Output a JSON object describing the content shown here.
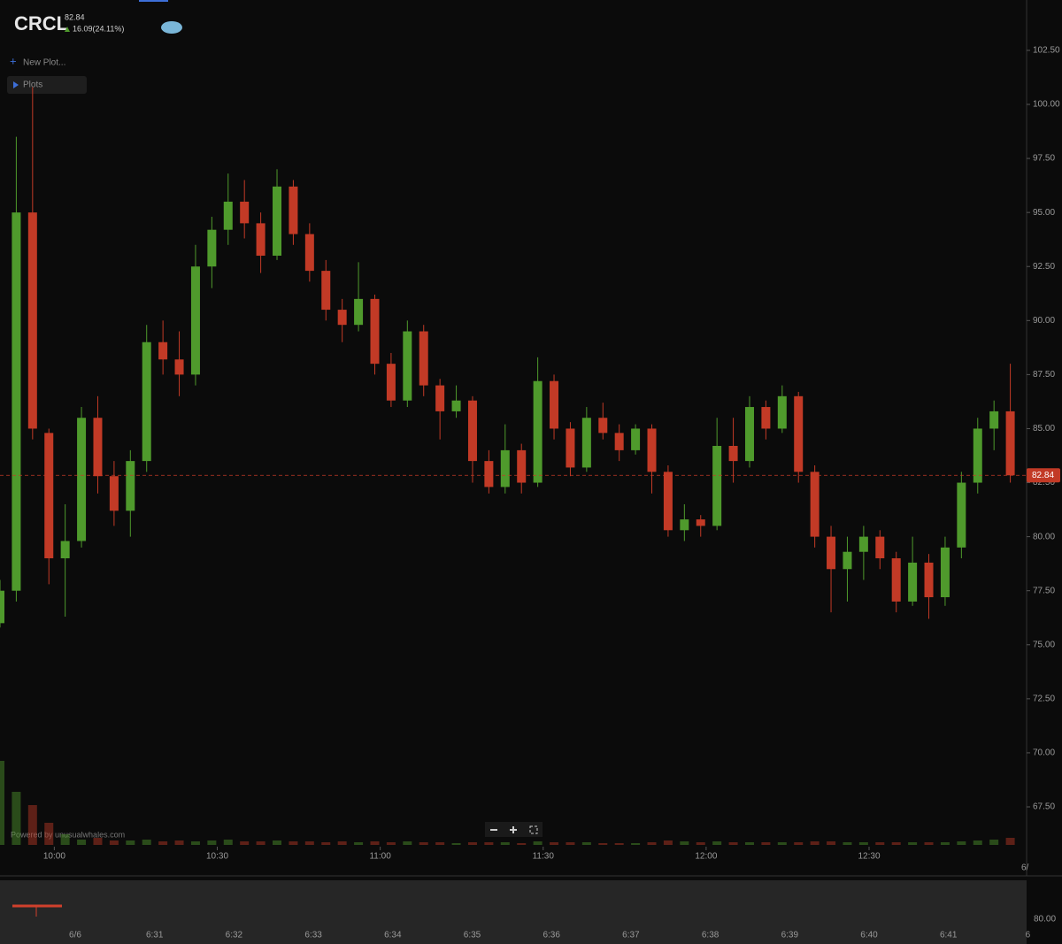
{
  "header": {
    "symbol": "CRCL",
    "price": "82.84",
    "change": "16.09(24.11%)",
    "new_plot": "New Plot...",
    "plots": "Plots",
    "powered_by": "Powered by unusualwhales.com"
  },
  "chart_data": {
    "type": "candlestick",
    "x": [
      "9:50",
      "9:53",
      "9:56",
      "9:59",
      "10:02",
      "10:05",
      "10:08",
      "10:11",
      "10:14",
      "10:17",
      "10:20",
      "10:23",
      "10:26",
      "10:29",
      "10:32",
      "10:35",
      "10:38",
      "10:41",
      "10:44",
      "10:47",
      "10:50",
      "10:53",
      "10:56",
      "10:59",
      "11:02",
      "11:05",
      "11:08",
      "11:11",
      "11:14",
      "11:17",
      "11:20",
      "11:23",
      "11:26",
      "11:29",
      "11:32",
      "11:35",
      "11:38",
      "11:41",
      "11:44",
      "11:47",
      "11:50",
      "11:53",
      "11:56",
      "11:59",
      "12:02",
      "12:05",
      "12:08",
      "12:11",
      "12:14",
      "12:17",
      "12:20",
      "12:23",
      "12:26",
      "12:29",
      "12:32",
      "12:35",
      "12:38",
      "12:41",
      "12:44",
      "12:47",
      "12:50",
      "12:53",
      "12:56"
    ],
    "ohlc": [
      [
        76.0,
        78.0,
        75.8,
        77.5
      ],
      [
        77.5,
        98.5,
        77.0,
        95.0
      ],
      [
        95.0,
        100.8,
        84.5,
        85.0
      ],
      [
        84.8,
        85.0,
        77.8,
        79.0
      ],
      [
        79.0,
        81.5,
        76.3,
        79.8
      ],
      [
        79.8,
        86.0,
        79.5,
        85.5
      ],
      [
        85.5,
        86.5,
        82.0,
        82.8
      ],
      [
        82.8,
        83.5,
        80.5,
        81.2
      ],
      [
        81.2,
        84.0,
        80.0,
        83.5
      ],
      [
        83.5,
        89.8,
        83.0,
        89.0
      ],
      [
        89.0,
        90.0,
        87.5,
        88.2
      ],
      [
        88.2,
        89.5,
        86.5,
        87.5
      ],
      [
        87.5,
        93.5,
        87.0,
        92.5
      ],
      [
        92.5,
        94.8,
        91.5,
        94.2
      ],
      [
        94.2,
        96.8,
        93.5,
        95.5
      ],
      [
        95.5,
        96.5,
        93.8,
        94.5
      ],
      [
        94.5,
        95.0,
        92.2,
        93.0
      ],
      [
        93.0,
        97.0,
        92.8,
        96.2
      ],
      [
        96.2,
        96.5,
        93.5,
        94.0
      ],
      [
        94.0,
        94.5,
        91.8,
        92.3
      ],
      [
        92.3,
        92.8,
        90.0,
        90.5
      ],
      [
        90.5,
        91.0,
        89.0,
        89.8
      ],
      [
        89.8,
        92.7,
        89.5,
        91.0
      ],
      [
        91.0,
        91.2,
        87.5,
        88.0
      ],
      [
        88.0,
        88.5,
        86.0,
        86.3
      ],
      [
        86.3,
        90.0,
        86.0,
        89.5
      ],
      [
        89.5,
        89.8,
        86.5,
        87.0
      ],
      [
        87.0,
        87.3,
        84.5,
        85.8
      ],
      [
        85.8,
        87.0,
        85.5,
        86.3
      ],
      [
        86.3,
        86.5,
        82.5,
        83.5
      ],
      [
        83.5,
        84.0,
        82.0,
        82.3
      ],
      [
        82.3,
        85.2,
        82.0,
        84.0
      ],
      [
        84.0,
        84.3,
        82.0,
        82.5
      ],
      [
        82.5,
        88.3,
        82.3,
        87.2
      ],
      [
        87.2,
        87.5,
        84.5,
        85.0
      ],
      [
        85.0,
        85.3,
        82.8,
        83.2
      ],
      [
        83.2,
        86.0,
        83.0,
        85.5
      ],
      [
        85.5,
        86.2,
        84.5,
        84.8
      ],
      [
        84.8,
        85.2,
        83.5,
        84.0
      ],
      [
        84.0,
        85.2,
        83.8,
        85.0
      ],
      [
        85.0,
        85.2,
        82.0,
        83.0
      ],
      [
        83.0,
        83.3,
        80.0,
        80.3
      ],
      [
        80.3,
        81.5,
        79.8,
        80.8
      ],
      [
        80.8,
        81.0,
        80.0,
        80.5
      ],
      [
        80.5,
        85.5,
        80.3,
        84.2
      ],
      [
        84.2,
        85.5,
        82.5,
        83.5
      ],
      [
        83.5,
        86.5,
        83.2,
        86.0
      ],
      [
        86.0,
        86.3,
        84.5,
        85.0
      ],
      [
        85.0,
        87.0,
        84.8,
        86.5
      ],
      [
        86.5,
        86.7,
        82.5,
        83.0
      ],
      [
        83.0,
        83.3,
        79.5,
        80.0
      ],
      [
        80.0,
        80.5,
        76.5,
        78.5
      ],
      [
        78.5,
        80.0,
        77.0,
        79.3
      ],
      [
        79.3,
        80.5,
        78.0,
        80.0
      ],
      [
        80.0,
        80.3,
        78.5,
        79.0
      ],
      [
        79.0,
        79.3,
        76.5,
        77.0
      ],
      [
        77.0,
        80.0,
        76.8,
        78.8
      ],
      [
        78.8,
        79.2,
        76.2,
        77.2
      ],
      [
        77.2,
        80.0,
        76.8,
        79.5
      ],
      [
        79.5,
        83.0,
        79.0,
        82.5
      ],
      [
        82.5,
        85.5,
        82.0,
        85.0
      ],
      [
        85.0,
        86.3,
        84.0,
        85.8
      ],
      [
        85.8,
        88.0,
        82.5,
        82.84
      ]
    ],
    "volume": [
      95,
      60,
      45,
      25,
      12,
      6,
      8,
      5,
      5,
      6,
      4,
      5,
      4,
      5,
      6,
      4,
      4,
      5,
      4,
      4,
      3,
      4,
      3,
      4,
      3,
      4,
      3,
      3,
      2,
      3,
      3,
      3,
      2,
      4,
      3,
      3,
      3,
      2,
      2,
      2,
      3,
      5,
      4,
      3,
      4,
      3,
      3,
      3,
      3,
      3,
      4,
      4,
      3,
      3,
      3,
      3,
      3,
      3,
      3,
      4,
      5,
      6,
      8
    ],
    "up_color": "#4f9a2c",
    "down_color": "#c23a26",
    "xlim": [
      "9:50",
      "12:59"
    ],
    "xticks": [
      "10:00",
      "10:30",
      "11:00",
      "11:30",
      "12:00",
      "12:30"
    ],
    "x_edge_label": "6/",
    "ylim": [
      65.74,
      104.83
    ],
    "yticks": [
      {
        "value": 67.5,
        "label": "67.50"
      },
      {
        "value": 70,
        "label": "70.00"
      },
      {
        "value": 72.5,
        "label": "72.50"
      },
      {
        "value": 75,
        "label": "75.00"
      },
      {
        "value": 77.5,
        "label": "77.50"
      },
      {
        "value": 80,
        "label": "80.00"
      },
      {
        "value": 82.5,
        "label": "82.50"
      },
      {
        "value": 85,
        "label": "85.00"
      },
      {
        "value": 87.5,
        "label": "87.50"
      },
      {
        "value": 90,
        "label": "90.00"
      },
      {
        "value": 92.5,
        "label": "92.50"
      },
      {
        "value": 95,
        "label": "95.00"
      },
      {
        "value": 97.5,
        "label": "97.50"
      },
      {
        "value": 100,
        "label": "100.00"
      },
      {
        "value": 102.5,
        "label": "102.50"
      }
    ],
    "last_price": 82.84
  },
  "navigator": {
    "labels": [
      "6/6",
      "6:31",
      "6:32",
      "6:33",
      "6:34",
      "6:35",
      "6:36",
      "6:37",
      "6:38",
      "6:39",
      "6:40",
      "6:41",
      "6"
    ],
    "axis_label": "80.00"
  }
}
